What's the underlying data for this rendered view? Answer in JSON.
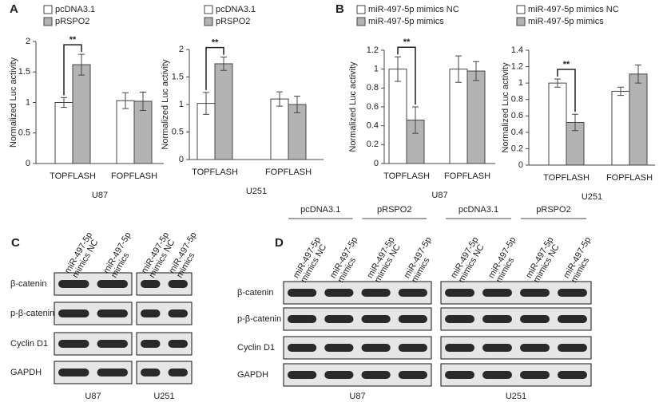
{
  "panel_labels": [
    "A",
    "B",
    "C",
    "D"
  ],
  "chart_data": [
    {
      "type": "bar",
      "categories": [
        "TOPFLASH",
        "FOPFLASH"
      ],
      "series": [
        {
          "name": "pcDNA3.1",
          "color": "#ffffff",
          "values": [
            1.0,
            1.03
          ],
          "errors": [
            0.08,
            0.13
          ]
        },
        {
          "name": "pRSPO2",
          "color": "#b3b3b3",
          "values": [
            1.62,
            1.02
          ],
          "errors": [
            0.17,
            0.15
          ]
        }
      ],
      "ylabel": "Normalized Luc activity",
      "xlabel": "U87",
      "ylim": [
        0,
        2
      ],
      "yticks": [
        0,
        0.5,
        1,
        1.5,
        2
      ],
      "annotation": "**"
    },
    {
      "type": "bar",
      "categories": [
        "TOPFLASH",
        "FOPFLASH"
      ],
      "series": [
        {
          "name": "pcDNA3.1",
          "color": "#ffffff",
          "values": [
            1.02,
            1.1
          ],
          "errors": [
            0.2,
            0.13
          ]
        },
        {
          "name": "pRSPO2",
          "color": "#b3b3b3",
          "values": [
            1.74,
            1.0
          ],
          "errors": [
            0.12,
            0.15
          ]
        }
      ],
      "ylabel": "Normalized Luc activity",
      "xlabel": "U251",
      "ylim": [
        0,
        2
      ],
      "yticks": [
        0,
        0.5,
        1,
        1.5,
        2
      ],
      "annotation": "**"
    },
    {
      "type": "bar",
      "categories": [
        "TOPFLASH",
        "FOPFLASH"
      ],
      "series": [
        {
          "name": "miR-497-5p mimics NC",
          "color": "#ffffff",
          "values": [
            1.0,
            1.0
          ],
          "errors": [
            0.13,
            0.14
          ]
        },
        {
          "name": "miR-497-5p mimics",
          "color": "#b3b3b3",
          "values": [
            0.46,
            0.98
          ],
          "errors": [
            0.14,
            0.1
          ]
        }
      ],
      "ylabel": "Normalized Luc activity",
      "xlabel": "U87",
      "ylim": [
        0,
        1.2
      ],
      "yticks": [
        0,
        0.2,
        0.4,
        0.6,
        0.8,
        1,
        1.2
      ],
      "annotation": "**"
    },
    {
      "type": "bar",
      "categories": [
        "TOPFLASH",
        "FOPFLASH"
      ],
      "series": [
        {
          "name": "miR-497-5p mimics NC",
          "color": "#ffffff",
          "values": [
            1.0,
            0.9
          ],
          "errors": [
            0.05,
            0.05
          ]
        },
        {
          "name": "miR-497-5p mimics",
          "color": "#b3b3b3",
          "values": [
            0.52,
            1.11
          ],
          "errors": [
            0.1,
            0.11
          ]
        }
      ],
      "ylabel": "Normalized Luc activity",
      "xlabel": "U251",
      "ylim": [
        0,
        1.4
      ],
      "yticks": [
        0,
        0.2,
        0.4,
        0.6,
        0.8,
        1,
        1.2,
        1.4
      ],
      "annotation": "**"
    }
  ],
  "blot_c": {
    "columns": [
      [
        "miR-497-5p",
        "mimics NC"
      ],
      [
        "miR-497-5p",
        "mimics"
      ]
    ],
    "rows": [
      "β-catenin",
      "p-β-catenin",
      "Cyclin D1",
      "GAPDH"
    ],
    "cell_lines": [
      "U87",
      "U251"
    ]
  },
  "blot_d": {
    "groups": [
      "pcDNA3.1",
      "pRSPO2"
    ],
    "columns": [
      [
        "miR-497-5p",
        "mimics NC"
      ],
      [
        "miR-497-5p",
        "mimics"
      ]
    ],
    "rows": [
      "β-catenin",
      "p-β-catenin",
      "Cyclin D1",
      "GAPDH"
    ],
    "cell_lines": [
      "U87",
      "U251"
    ]
  }
}
